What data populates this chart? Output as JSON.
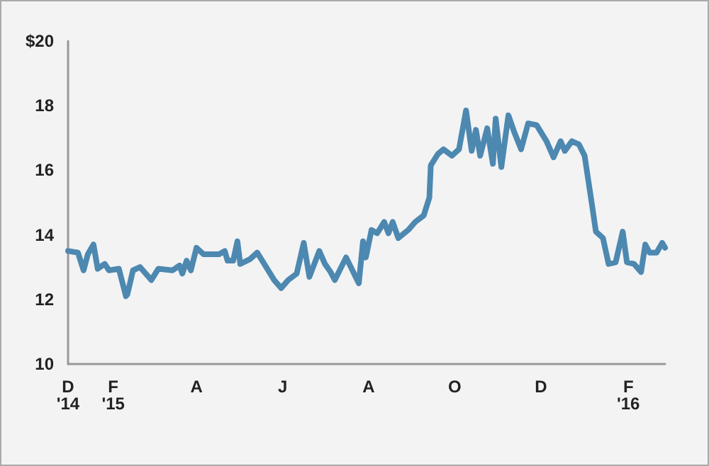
{
  "chart_data": {
    "type": "line",
    "x": [
      "2014-12-31",
      "2015-01-07",
      "2015-01-11",
      "2015-01-14",
      "2015-01-18",
      "2015-01-21",
      "2015-01-26",
      "2015-01-29",
      "2015-02-05",
      "2015-02-10",
      "2015-02-11",
      "2015-02-15",
      "2015-02-20",
      "2015-02-28",
      "2015-03-05",
      "2015-03-15",
      "2015-03-20",
      "2015-03-22",
      "2015-03-25",
      "2015-03-28",
      "2015-04-01",
      "2015-04-06",
      "2015-04-17",
      "2015-04-21",
      "2015-04-23",
      "2015-04-27",
      "2015-04-30",
      "2015-05-02",
      "2015-05-09",
      "2015-05-14",
      "2015-05-19",
      "2015-05-26",
      "2015-05-31",
      "2015-06-05",
      "2015-06-11",
      "2015-06-16",
      "2015-06-20",
      "2015-06-27",
      "2015-07-01",
      "2015-07-05",
      "2015-07-08",
      "2015-07-16",
      "2015-07-25",
      "2015-07-28",
      "2015-07-30",
      "2015-08-03",
      "2015-08-07",
      "2015-08-12",
      "2015-08-15",
      "2015-08-18",
      "2015-08-22",
      "2015-08-29",
      "2015-09-03",
      "2015-09-09",
      "2015-09-13",
      "2015-09-14",
      "2015-09-19",
      "2015-09-23",
      "2015-09-29",
      "2015-10-04",
      "2015-10-09",
      "2015-10-13",
      "2015-10-16",
      "2015-10-19",
      "2015-10-24",
      "2015-10-28",
      "2015-10-30",
      "2015-11-03",
      "2015-11-08",
      "2015-11-12",
      "2015-11-17",
      "2015-11-22",
      "2015-11-28",
      "2015-12-05",
      "2015-12-10",
      "2015-12-15",
      "2015-12-18",
      "2015-12-23",
      "2015-12-28",
      "2016-01-01",
      "2016-01-06",
      "2016-01-09",
      "2016-01-14",
      "2016-01-18",
      "2016-01-23",
      "2016-01-28",
      "2016-01-31",
      "2016-02-05",
      "2016-02-10",
      "2016-02-13",
      "2016-02-16",
      "2016-02-21",
      "2016-02-25",
      "2016-02-27"
    ],
    "series": [
      {
        "color": "#4d88b0",
        "values": [
          13.5,
          13.45,
          12.9,
          13.4,
          13.7,
          12.95,
          13.1,
          12.9,
          12.95,
          12.1,
          12.15,
          12.9,
          13.0,
          12.6,
          12.95,
          12.9,
          13.05,
          12.8,
          13.2,
          12.9,
          13.6,
          13.4,
          13.4,
          13.5,
          13.2,
          13.2,
          13.8,
          13.1,
          13.25,
          13.45,
          13.1,
          12.6,
          12.35,
          12.6,
          12.8,
          13.75,
          12.7,
          13.5,
          13.1,
          12.85,
          12.6,
          13.3,
          12.5,
          13.8,
          13.3,
          14.15,
          14.05,
          14.4,
          14.05,
          14.4,
          13.9,
          14.15,
          14.4,
          14.6,
          15.15,
          16.15,
          16.5,
          16.65,
          16.45,
          16.65,
          17.85,
          16.6,
          17.25,
          16.45,
          17.3,
          16.2,
          17.6,
          16.1,
          17.7,
          17.2,
          16.65,
          17.45,
          17.4,
          16.9,
          16.4,
          16.9,
          16.6,
          16.9,
          16.8,
          16.45,
          15.0,
          14.1,
          13.9,
          13.1,
          13.15,
          14.1,
          13.15,
          13.1,
          12.85,
          13.7,
          13.45,
          13.45,
          13.75,
          13.6
        ]
      }
    ],
    "xlim": [
      "2014-12-31",
      "2016-02-27"
    ],
    "xticks": [
      {
        "value": "2014-12-31",
        "label": "D\n'14"
      },
      {
        "value": "2015-02-01",
        "label": "F\n'15"
      },
      {
        "value": "2015-04-01",
        "label": "A"
      },
      {
        "value": "2015-06-01",
        "label": "J"
      },
      {
        "value": "2015-08-01",
        "label": "A"
      },
      {
        "value": "2015-10-01",
        "label": "O"
      },
      {
        "value": "2015-12-01",
        "label": "D"
      },
      {
        "value": "2016-02-01",
        "label": "F\n'16"
      }
    ],
    "ylim": [
      10,
      20
    ],
    "yticks": [
      10,
      12,
      14,
      16,
      18,
      {
        "value": 20,
        "label": "$20"
      }
    ],
    "grid": false,
    "marker": "none",
    "line_style": "solid"
  }
}
